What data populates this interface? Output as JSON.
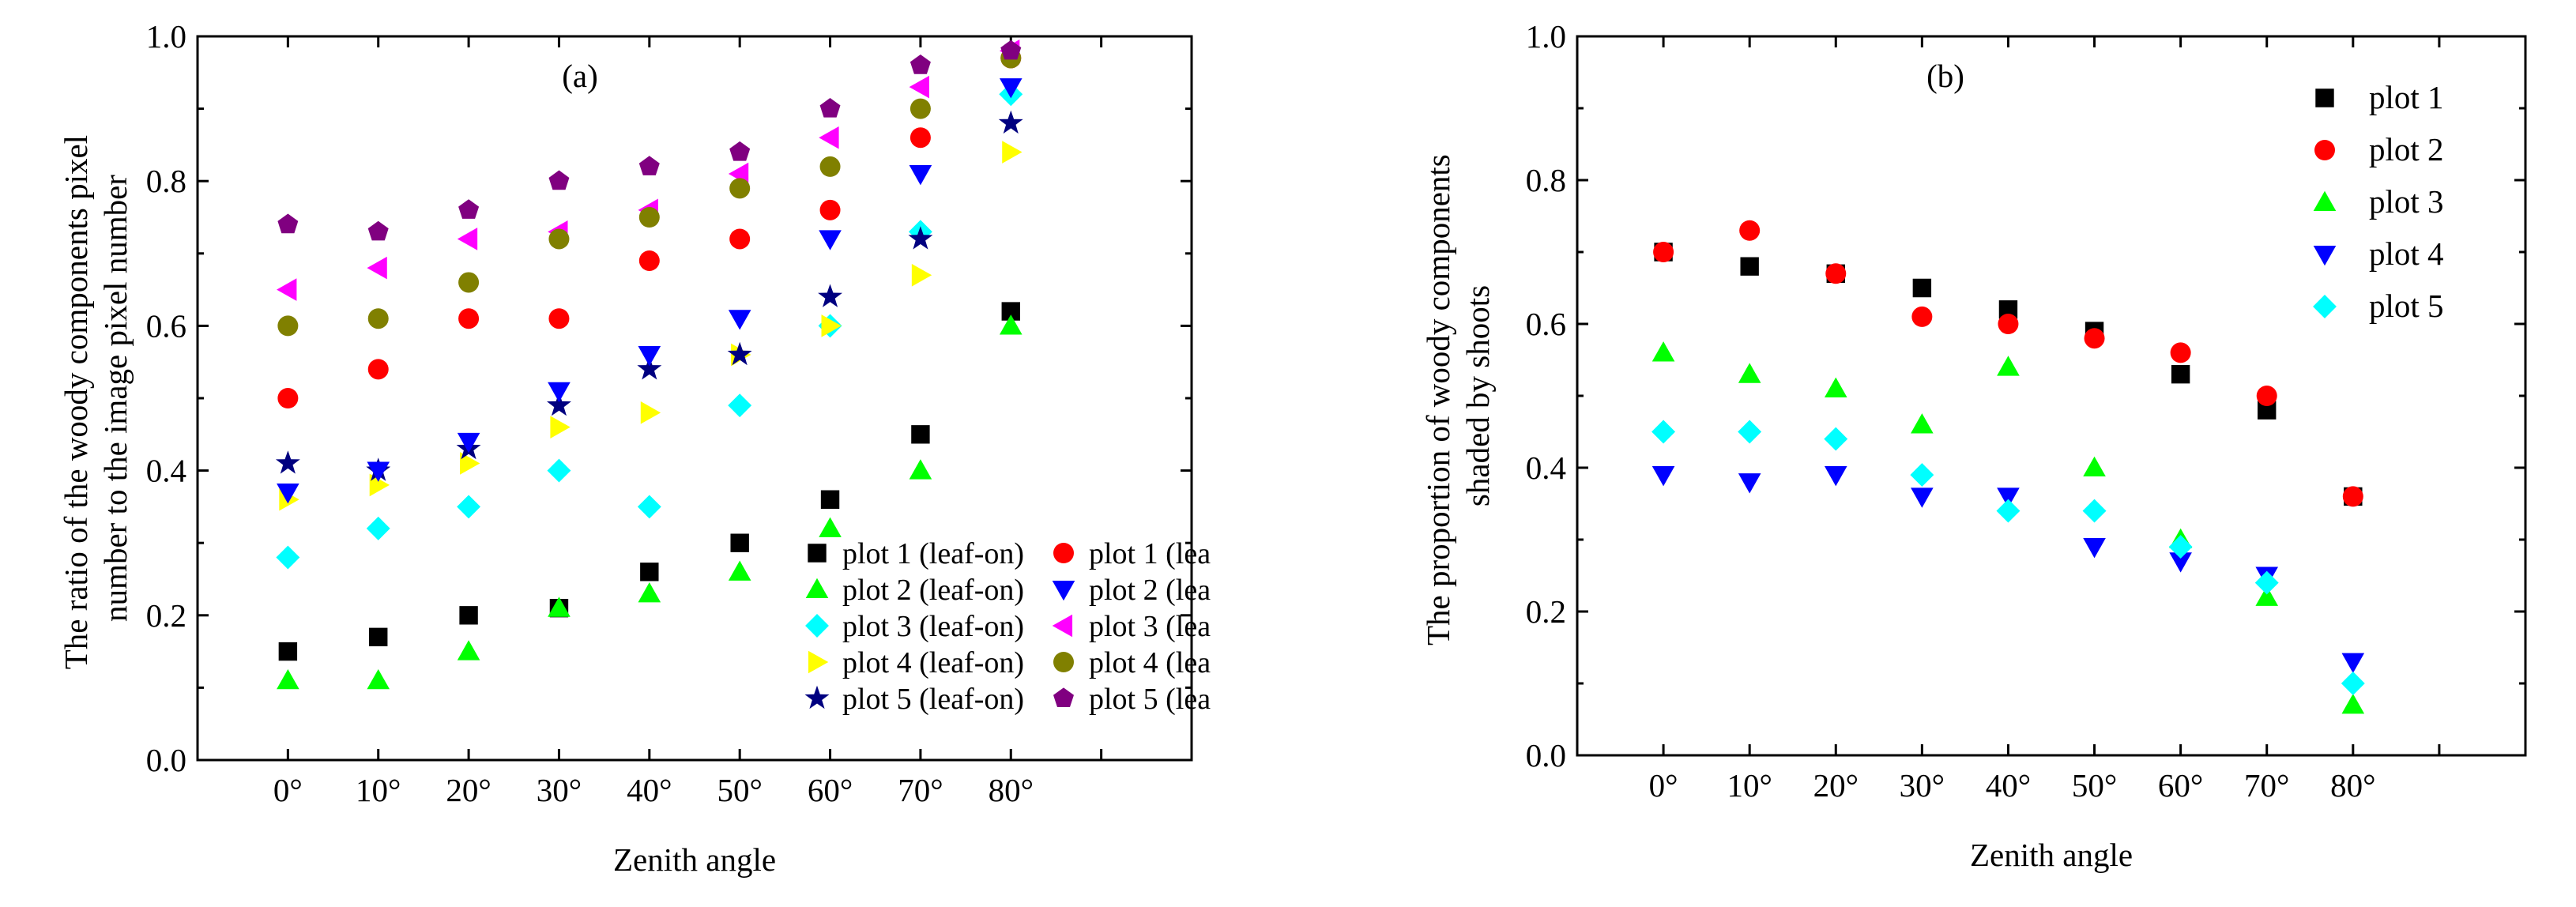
{
  "chart_data": [
    {
      "type": "scatter",
      "panel_label": "(a)",
      "xlabel": "Zenith angle",
      "ylabel": "The ratio of the woody components pixel number to the image pixel number",
      "categories": [
        "0°",
        "10°",
        "20°",
        "30°",
        "40°",
        "50°",
        "60°",
        "70°",
        "80°"
      ],
      "xlim": [
        -1,
        10
      ],
      "ylim": [
        0.0,
        1.0
      ],
      "yticks": [
        "0.0",
        "0.2",
        "0.4",
        "0.6",
        "0.8",
        "1.0"
      ],
      "grid": false,
      "legend_position": "bottom-right",
      "legend_columns": 2,
      "series": [
        {
          "name": "plot 1 (leaf-on)",
          "marker": "square",
          "color": "#000000",
          "values": [
            0.15,
            0.17,
            0.2,
            0.21,
            0.26,
            0.3,
            0.36,
            0.45,
            0.62
          ]
        },
        {
          "name": "plot 2 (leaf-on)",
          "marker": "triangle-up",
          "color": "#00ff00",
          "values": [
            0.11,
            0.11,
            0.15,
            0.21,
            0.23,
            0.26,
            0.32,
            0.4,
            0.6
          ]
        },
        {
          "name": "plot 3 (leaf-on)",
          "marker": "diamond",
          "color": "#00ffff",
          "values": [
            0.28,
            0.32,
            0.35,
            0.4,
            0.35,
            0.49,
            0.6,
            0.73,
            0.92
          ]
        },
        {
          "name": "plot 4 (leaf-on)",
          "marker": "triangle-right",
          "color": "#ffff00",
          "values": [
            0.36,
            0.38,
            0.41,
            0.46,
            0.48,
            0.56,
            0.6,
            0.67,
            0.84
          ]
        },
        {
          "name": "plot 5 (leaf-on)",
          "marker": "star",
          "color": "#000080",
          "values": [
            0.41,
            0.4,
            0.43,
            0.49,
            0.54,
            0.56,
            0.64,
            0.72,
            0.88
          ]
        },
        {
          "name": "plot 1 (lea",
          "marker": "circle",
          "color": "#ff0000",
          "values": [
            0.5,
            0.54,
            0.61,
            0.61,
            0.69,
            0.72,
            0.76,
            0.86,
            0.97
          ]
        },
        {
          "name": "plot 2 (lea",
          "marker": "triangle-down",
          "color": "#0000ff",
          "values": [
            0.37,
            0.4,
            0.44,
            0.51,
            0.56,
            0.61,
            0.72,
            0.81,
            0.93
          ]
        },
        {
          "name": "plot 3 (lea",
          "marker": "triangle-left",
          "color": "#ff00ff",
          "values": [
            0.65,
            0.68,
            0.72,
            0.73,
            0.76,
            0.81,
            0.86,
            0.93,
            0.98
          ]
        },
        {
          "name": "plot 4 (lea",
          "marker": "circle",
          "color": "#808000",
          "values": [
            0.6,
            0.61,
            0.66,
            0.72,
            0.75,
            0.79,
            0.82,
            0.9,
            0.97
          ]
        },
        {
          "name": "plot 5 (lea",
          "marker": "pentagon",
          "color": "#800080",
          "values": [
            0.74,
            0.73,
            0.76,
            0.8,
            0.82,
            0.84,
            0.9,
            0.96,
            0.98
          ]
        }
      ]
    },
    {
      "type": "scatter",
      "panel_label": "(b)",
      "xlabel": "Zenith angle",
      "ylabel": "The proportion of  woody components shaded by shoots",
      "categories": [
        "0°",
        "10°",
        "20°",
        "30°",
        "40°",
        "50°",
        "60°",
        "70°",
        "80°"
      ],
      "xlim": [
        -1,
        10
      ],
      "ylim": [
        0.0,
        1.0
      ],
      "yticks": [
        "0.0",
        "0.2",
        "0.4",
        "0.6",
        "0.8",
        "1.0"
      ],
      "grid": false,
      "legend_position": "top-right",
      "legend_columns": 1,
      "series": [
        {
          "name": "plot 1",
          "marker": "square",
          "color": "#000000",
          "values": [
            0.7,
            0.68,
            0.67,
            0.65,
            0.62,
            0.59,
            0.53,
            0.48,
            0.36
          ]
        },
        {
          "name": "plot 2",
          "marker": "circle",
          "color": "#ff0000",
          "values": [
            0.7,
            0.73,
            0.67,
            0.61,
            0.6,
            0.58,
            0.56,
            0.5,
            0.36
          ]
        },
        {
          "name": "plot 3",
          "marker": "triangle-up",
          "color": "#00ff00",
          "values": [
            0.56,
            0.53,
            0.51,
            0.46,
            0.54,
            0.4,
            0.3,
            0.22,
            0.07
          ]
        },
        {
          "name": "plot 4",
          "marker": "triangle-down",
          "color": "#0000ff",
          "values": [
            0.39,
            0.38,
            0.39,
            0.36,
            0.36,
            0.29,
            0.27,
            0.25,
            0.13
          ]
        },
        {
          "name": "plot 5",
          "marker": "diamond",
          "color": "#00ffff",
          "values": [
            0.45,
            0.45,
            0.44,
            0.39,
            0.34,
            0.34,
            0.29,
            0.24,
            0.1
          ]
        }
      ]
    }
  ]
}
